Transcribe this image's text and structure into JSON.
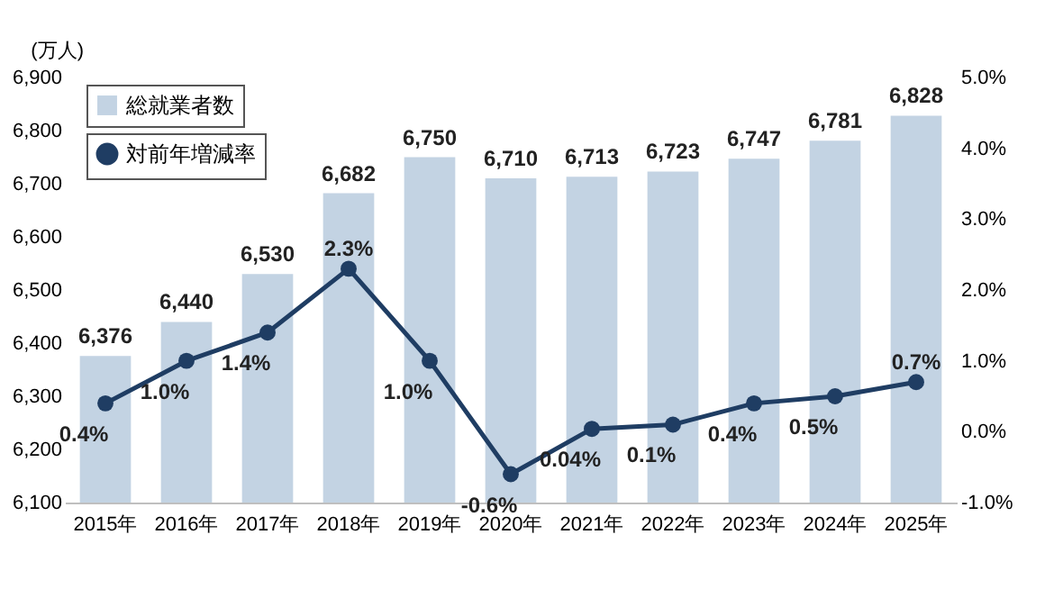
{
  "chart_data": {
    "type": "bar",
    "ylabel": "(万人)",
    "categories": [
      "2015年",
      "2016年",
      "2017年",
      "2018年",
      "2019年",
      "2020年",
      "2021年",
      "2022年",
      "2023年",
      "2024年",
      "2025年"
    ],
    "series": [
      {
        "name": "総就業者数",
        "type": "bar",
        "color": "#c3d3e3",
        "values": [
          6376,
          6440,
          6530,
          6682,
          6750,
          6710,
          6713,
          6723,
          6747,
          6781,
          6828
        ],
        "value_labels": [
          "6,376",
          "6,440",
          "6,530",
          "6,682",
          "6,750",
          "6,710",
          "6,713",
          "6,723",
          "6,747",
          "6,781",
          "6,828"
        ]
      },
      {
        "name": "対前年増減率",
        "type": "line",
        "axis": "y2",
        "color": "#1f3d63",
        "values": [
          0.4,
          1.0,
          1.4,
          2.3,
          1.0,
          -0.6,
          0.04,
          0.1,
          0.4,
          0.5,
          0.7
        ],
        "value_labels": [
          "0.4%",
          "1.0%",
          "1.4%",
          "2.3%",
          "1.0%",
          "-0.6%",
          "0.04%",
          "0.1%",
          "0.4%",
          "0.5%",
          "0.7%"
        ]
      }
    ],
    "ylim": [
      6100,
      6900
    ],
    "yticks": [
      {
        "value": 6100,
        "label": "6,100"
      },
      {
        "value": 6200,
        "label": "6,200"
      },
      {
        "value": 6300,
        "label": "6,300"
      },
      {
        "value": 6400,
        "label": "6,400"
      },
      {
        "value": 6500,
        "label": "6,500"
      },
      {
        "value": 6600,
        "label": "6,600"
      },
      {
        "value": 6700,
        "label": "6,700"
      },
      {
        "value": 6800,
        "label": "6,800"
      },
      {
        "value": 6900,
        "label": "6,900"
      }
    ],
    "y2lim": [
      -1.0,
      5.0
    ],
    "y2ticks": [
      {
        "value": -1.0,
        "label": "-1.0%"
      },
      {
        "value": 0,
        "label": "0.0%"
      },
      {
        "value": 1.0,
        "label": "1.0%"
      },
      {
        "value": 2.0,
        "label": "2.0%"
      },
      {
        "value": 3.0,
        "label": "3.0%"
      },
      {
        "value": 4.0,
        "label": "4.0%"
      },
      {
        "value": 5.0,
        "label": "5.0%"
      }
    ],
    "marker": "circle",
    "legend": "top left",
    "grid": false
  }
}
